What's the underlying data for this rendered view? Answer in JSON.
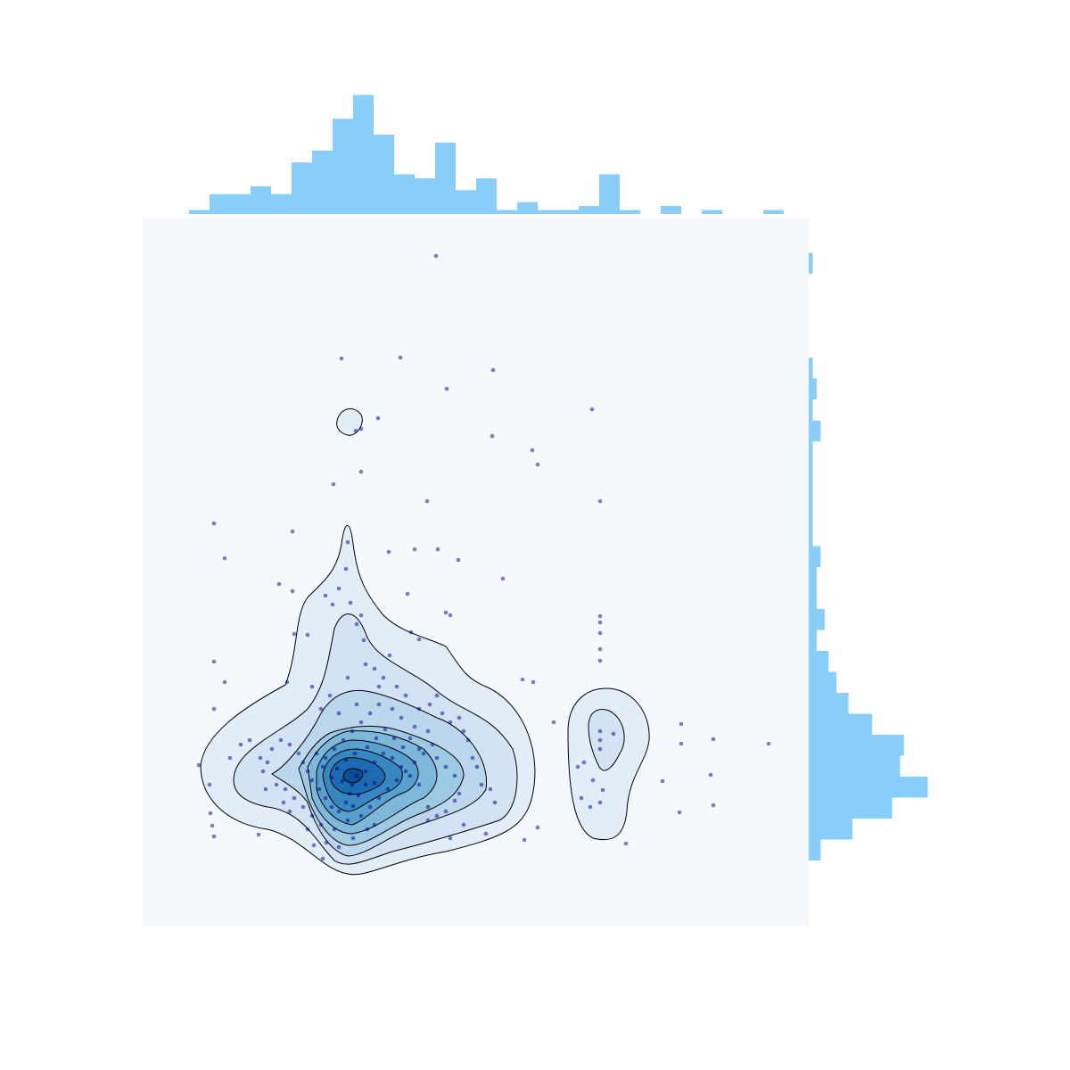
{
  "chart_data": [
    {
      "type": "scatter",
      "color": "#00008b",
      "xlim": [
        0,
        747
      ],
      "ylim": [
        0,
        795
      ],
      "x": [
        329,
        223,
        289,
        393,
        341,
        504,
        264,
        245,
        239,
        392,
        437,
        443,
        245,
        214,
        319,
        513,
        80,
        168,
        92,
        230,
        276,
        305,
        331,
        354,
        404,
        153,
        297,
        168,
        213,
        340,
        345,
        513,
        513,
        513,
        513,
        513,
        80,
        170,
        185,
        248,
        277,
        301,
        310,
        438,
        426,
        92,
        80,
        162,
        461,
        604,
        604,
        640,
        702,
        637,
        583,
        602,
        640,
        542,
        428,
        443,
        78,
        80,
        130,
        63,
        75,
        76,
        202,
        492,
        495,
        505,
        513,
        513,
        513,
        528,
        488,
        516,
        502,
        513,
        205,
        220,
        228,
        233,
        240,
        245,
        250,
        260,
        270,
        285,
        295,
        310,
        322,
        330,
        336,
        345,
        355,
        360,
        365,
        370,
        375,
        380,
        390,
        395,
        385,
        360,
        350,
        340,
        330,
        320,
        310,
        300,
        290,
        280,
        270,
        260,
        250,
        240,
        235,
        232,
        228,
        220,
        212,
        205,
        198,
        190,
        185,
        180,
        175,
        165,
        155,
        145,
        140,
        135,
        150,
        160,
        170,
        180,
        190,
        200,
        215,
        230,
        245,
        255,
        265,
        275,
        285,
        295,
        305,
        315,
        325,
        320,
        305,
        290,
        280,
        265,
        255,
        245,
        235,
        225,
        215,
        205,
        218,
        228,
        238,
        252,
        262,
        272,
        282,
        292,
        250,
        260,
        242,
        236,
        224,
        212,
        202,
        195,
        200,
        210,
        190,
        230,
        240,
        220,
        265,
        300,
        310,
        340,
        330,
        350,
        355,
        345,
        320,
        98,
        110,
        120,
        132,
        138,
        158,
        165,
        185,
        192,
        206,
        220,
        236,
        252,
        260
      ],
      "values": [
        752,
        637,
        638,
        624,
        603,
        580,
        570,
        558,
        556,
        550,
        534,
        518,
        510,
        496,
        477,
        477,
        452,
        443,
        413,
        431,
        420,
        423,
        423,
        411,
        390,
        384,
        373,
        376,
        361,
        352,
        349,
        348,
        341,
        329,
        311,
        298,
        297,
        328,
        327,
        321,
        304,
        330,
        322,
        274,
        277,
        274,
        244,
        274,
        229,
        227,
        205,
        210,
        205,
        170,
        163,
        128,
        136,
        93,
        97,
        111,
        113,
        101,
        103,
        181,
        159,
        127,
        76,
        144,
        184,
        164,
        219,
        209,
        199,
        216,
        179,
        153,
        134,
        139,
        371,
        379,
        401,
        363,
        339,
        349,
        294,
        289,
        279,
        269,
        259,
        244,
        249,
        259,
        239,
        229,
        234,
        219,
        209,
        189,
        179,
        159,
        154,
        139,
        104,
        114,
        141,
        129,
        124,
        134,
        159,
        169,
        179,
        189,
        194,
        184,
        174,
        169,
        159,
        149,
        139,
        129,
        134,
        144,
        154,
        164,
        174,
        184,
        194,
        204,
        209,
        199,
        184,
        174,
        159,
        154,
        144,
        134,
        124,
        114,
        109,
        119,
        124,
        134,
        144,
        154,
        164,
        174,
        184,
        194,
        204,
        219,
        224,
        234,
        244,
        249,
        239,
        229,
        219,
        209,
        199,
        189,
        177,
        187,
        194,
        201,
        211,
        221,
        211,
        201,
        159,
        161,
        147,
        135,
        163,
        167,
        179,
        194,
        244,
        259,
        269,
        279,
        249,
        239,
        269,
        211,
        199,
        179,
        189,
        169,
        149,
        99,
        119,
        189,
        204,
        209,
        189,
        154,
        139,
        129,
        109,
        91,
        94,
        89,
        99,
        109,
        114
      ]
    },
    {
      "type": "histogram",
      "orientation": "vertical",
      "color": "#87cefa",
      "bins": [
        52,
        75,
        98,
        121,
        144,
        167,
        190,
        213,
        236,
        259,
        282,
        305,
        328,
        351,
        374,
        397,
        420,
        443,
        466,
        489,
        512,
        535,
        558,
        581,
        604,
        627,
        650,
        673,
        696,
        719
      ],
      "counts": [
        1,
        5,
        5,
        7,
        5,
        13,
        16,
        24,
        30,
        20,
        10,
        9,
        18,
        6,
        9,
        1,
        3,
        1,
        1,
        2,
        10,
        1,
        0,
        2,
        0,
        1,
        0,
        0,
        1
      ]
    },
    {
      "type": "histogram",
      "orientation": "horizontal",
      "color": "#87cefa",
      "bins": [
        74,
        97.5,
        121,
        144.5,
        168,
        191.5,
        215,
        238.5,
        262,
        285.5,
        309,
        332.5,
        356,
        379.5,
        403,
        426.5,
        450,
        473.5,
        497,
        520.5,
        544,
        567.5,
        591,
        614.5,
        638,
        661.5,
        685,
        708.5,
        732,
        755.5
      ],
      "counts": [
        3,
        11,
        21,
        30,
        23,
        24,
        16,
        10,
        7,
        5,
        2,
        4,
        2,
        2,
        3,
        1,
        1,
        1,
        1,
        1,
        3,
        1,
        2,
        1,
        0,
        0,
        0,
        0,
        1
      ]
    }
  ]
}
